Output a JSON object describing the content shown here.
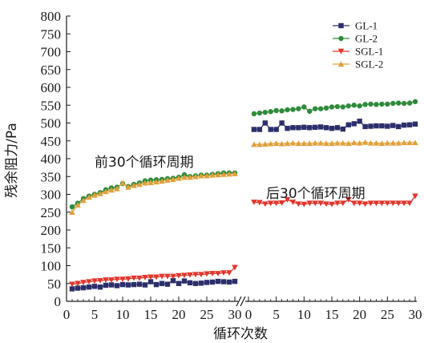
{
  "chart_data": {
    "type": "line",
    "xlabel": "循环次数",
    "ylabel": "残余阻力/Pa",
    "ylim": [
      0,
      800
    ],
    "yticks": [
      "0",
      "50",
      "100",
      "150",
      "200",
      "250",
      "300",
      "350",
      "400",
      "450",
      "500",
      "550",
      "600",
      "650",
      "700",
      "750",
      "800"
    ],
    "panels": [
      {
        "xlim": [
          0,
          30
        ],
        "xticks": [
          "0",
          "5",
          "10",
          "15",
          "20",
          "25",
          "30"
        ],
        "annotation": "前30个循环周期"
      },
      {
        "xlim": [
          0,
          30
        ],
        "xticks": [
          "0",
          "5",
          "10",
          "15",
          "20",
          "25",
          "30"
        ],
        "annotation": "后30个循环周期"
      }
    ],
    "axis_break": true,
    "legend_position": "top-right",
    "series": [
      {
        "name": "GL-1",
        "color": "#2b2f6b",
        "marker": "square",
        "first": [
          35,
          37,
          38,
          40,
          42,
          40,
          45,
          46,
          44,
          47,
          46,
          47,
          48,
          46,
          55,
          47,
          50,
          48,
          58,
          50,
          57,
          52,
          50,
          51,
          53,
          54,
          56,
          55,
          54,
          56
        ],
        "second": [
          482,
          482,
          500,
          482,
          482,
          500,
          485,
          487,
          487,
          488,
          487,
          488,
          489,
          487,
          485,
          487,
          483,
          495,
          498,
          505,
          490,
          491,
          492,
          492,
          491,
          493,
          490,
          494,
          495,
          497
        ]
      },
      {
        "name": "GL-2",
        "color": "#2e8b3a",
        "marker": "circle",
        "first": [
          265,
          275,
          288,
          295,
          300,
          305,
          313,
          318,
          320,
          330,
          322,
          328,
          332,
          338,
          340,
          341,
          342,
          344,
          345,
          348,
          355,
          350,
          352,
          354,
          354,
          356,
          358,
          360,
          360,
          360
        ],
        "second": [
          526,
          528,
          530,
          532,
          535,
          534,
          537,
          538,
          540,
          545,
          533,
          540,
          540,
          542,
          545,
          546,
          545,
          548,
          550,
          548,
          552,
          553,
          552,
          553,
          553,
          555,
          556,
          555,
          556,
          560
        ]
      },
      {
        "name": "SGL-1",
        "color": "#e3352a",
        "marker": "triangle-down",
        "first": [
          48,
          50,
          53,
          55,
          57,
          58,
          60,
          60,
          62,
          62,
          63,
          65,
          65,
          67,
          68,
          68,
          70,
          70,
          70,
          72,
          73,
          74,
          75,
          75,
          77,
          78,
          78,
          80,
          80,
          95
        ],
        "second": [
          278,
          277,
          273,
          275,
          275,
          276,
          285,
          278,
          273,
          272,
          275,
          275,
          275,
          273,
          272,
          275,
          275,
          285,
          275,
          275,
          273,
          275,
          275,
          275,
          275,
          275,
          275,
          275,
          275,
          295
        ]
      },
      {
        "name": "SGL-2",
        "color": "#e0a03a",
        "marker": "triangle-up",
        "first": [
          250,
          270,
          283,
          292,
          298,
          302,
          308,
          312,
          316,
          332,
          320,
          325,
          328,
          332,
          333,
          335,
          337,
          340,
          342,
          345,
          348,
          348,
          350,
          352,
          352,
          354,
          355,
          356,
          357,
          358
        ],
        "second": [
          440,
          440,
          441,
          442,
          443,
          442,
          443,
          444,
          443,
          443,
          443,
          444,
          444,
          443,
          443,
          444,
          444,
          443,
          445,
          444,
          446,
          444,
          444,
          443,
          444,
          444,
          444,
          445,
          445,
          445
        ]
      }
    ]
  }
}
